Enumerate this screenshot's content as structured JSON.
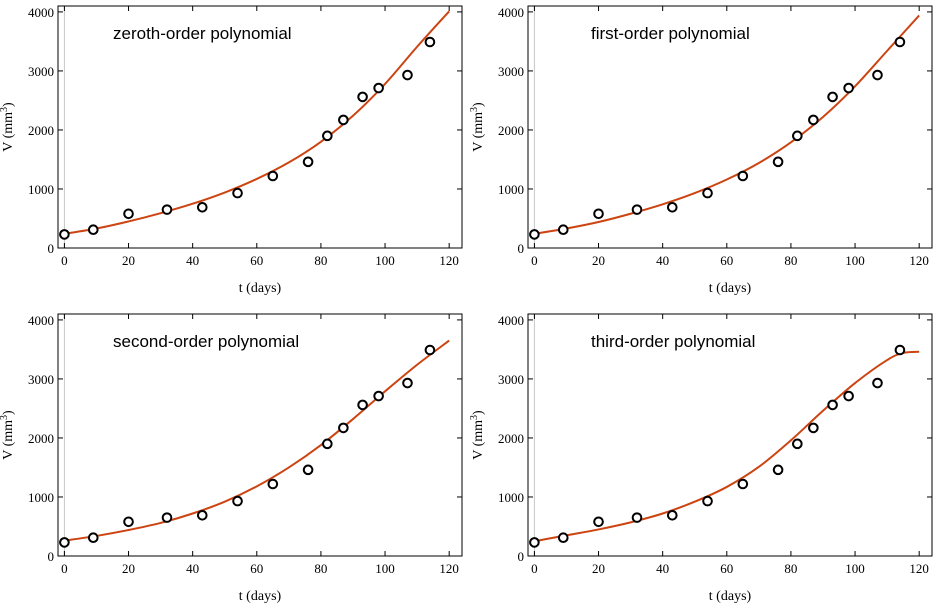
{
  "colors": {
    "fit_line": "#cc4411",
    "points": "#000000",
    "zero_line": "#c8c8c8"
  },
  "chart_data": [
    {
      "type": "scatter",
      "title": "zeroth-order polynomial",
      "xlabel": "t (days)",
      "ylabel": "V (mm³)",
      "ylabel_base": "V (mm",
      "ylabel_sup": "3",
      "ylabel_close": ")",
      "xlim": [
        -2,
        124
      ],
      "ylim": [
        0,
        4100
      ],
      "x_ticks": [
        "0",
        "20",
        "40",
        "60",
        "80",
        "100",
        "120"
      ],
      "y_ticks": [
        "0",
        "1000",
        "2000",
        "3000",
        "4000"
      ],
      "grid": false,
      "series": [
        {
          "kind": "points",
          "x": [
            0,
            9,
            20,
            32,
            43,
            54,
            65,
            76,
            82,
            87,
            93,
            98,
            107,
            114
          ],
          "y": [
            230,
            310,
            580,
            650,
            690,
            930,
            1220,
            1460,
            1900,
            2170,
            2560,
            2710,
            2930,
            3490
          ]
        },
        {
          "kind": "fit",
          "x": [
            0,
            10,
            20,
            30,
            40,
            50,
            60,
            70,
            80,
            90,
            100,
            110,
            120
          ],
          "y": [
            240,
            330,
            450,
            590,
            750,
            940,
            1170,
            1450,
            1800,
            2240,
            2780,
            3410,
            4010
          ]
        }
      ]
    },
    {
      "type": "scatter",
      "title": "first-order polynomial",
      "xlabel": "t (days)",
      "ylabel": "V (mm³)",
      "ylabel_base": "V (mm",
      "ylabel_sup": "3",
      "ylabel_close": ")",
      "xlim": [
        -2,
        124
      ],
      "ylim": [
        0,
        4100
      ],
      "x_ticks": [
        "0",
        "20",
        "40",
        "60",
        "80",
        "100",
        "120"
      ],
      "y_ticks": [
        "0",
        "1000",
        "2000",
        "3000",
        "4000"
      ],
      "grid": false,
      "series": [
        {
          "kind": "points",
          "x": [
            0,
            9,
            20,
            32,
            43,
            54,
            65,
            76,
            82,
            87,
            93,
            98,
            107,
            114
          ],
          "y": [
            230,
            310,
            580,
            650,
            690,
            930,
            1220,
            1460,
            1900,
            2170,
            2560,
            2710,
            2930,
            3490
          ]
        },
        {
          "kind": "fit",
          "x": [
            0,
            10,
            20,
            30,
            40,
            50,
            60,
            70,
            80,
            90,
            100,
            110,
            120
          ],
          "y": [
            240,
            330,
            440,
            580,
            740,
            930,
            1160,
            1440,
            1790,
            2220,
            2740,
            3340,
            3940
          ]
        }
      ]
    },
    {
      "type": "scatter",
      "title": "second-order polynomial",
      "xlabel": "t (days)",
      "ylabel": "V (mm³)",
      "ylabel_base": "V (mm",
      "ylabel_sup": "3",
      "ylabel_close": ")",
      "xlim": [
        -2,
        124
      ],
      "ylim": [
        0,
        4100
      ],
      "x_ticks": [
        "0",
        "20",
        "40",
        "60",
        "80",
        "100",
        "120"
      ],
      "y_ticks": [
        "0",
        "1000",
        "2000",
        "3000",
        "4000"
      ],
      "grid": false,
      "series": [
        {
          "kind": "points",
          "x": [
            0,
            9,
            20,
            32,
            43,
            54,
            65,
            76,
            82,
            87,
            93,
            98,
            107,
            114
          ],
          "y": [
            230,
            310,
            580,
            650,
            690,
            930,
            1220,
            1460,
            1900,
            2170,
            2560,
            2710,
            2930,
            3490
          ]
        },
        {
          "kind": "fit",
          "x": [
            0,
            10,
            20,
            30,
            40,
            50,
            60,
            70,
            80,
            90,
            100,
            110,
            120
          ],
          "y": [
            260,
            340,
            440,
            560,
            720,
            920,
            1180,
            1500,
            1880,
            2320,
            2790,
            3240,
            3650
          ]
        }
      ]
    },
    {
      "type": "scatter",
      "title": "third-order polynomial",
      "xlabel": "t (days)",
      "ylabel": "V (mm³)",
      "ylabel_base": "V (mm",
      "ylabel_sup": "3",
      "ylabel_close": ")",
      "xlim": [
        -2,
        124
      ],
      "ylim": [
        0,
        4100
      ],
      "x_ticks": [
        "0",
        "20",
        "40",
        "60",
        "80",
        "100",
        "120"
      ],
      "y_ticks": [
        "0",
        "1000",
        "2000",
        "3000",
        "4000"
      ],
      "grid": false,
      "series": [
        {
          "kind": "points",
          "x": [
            0,
            9,
            20,
            32,
            43,
            54,
            65,
            76,
            82,
            87,
            93,
            98,
            107,
            114
          ],
          "y": [
            230,
            310,
            580,
            650,
            690,
            930,
            1220,
            1460,
            1900,
            2170,
            2560,
            2710,
            2930,
            3490
          ]
        },
        {
          "kind": "fit",
          "x": [
            0,
            10,
            20,
            30,
            40,
            50,
            60,
            70,
            80,
            90,
            100,
            110,
            115,
            120
          ],
          "y": [
            250,
            350,
            450,
            570,
            720,
            920,
            1170,
            1510,
            1960,
            2460,
            2930,
            3320,
            3440,
            3460
          ]
        }
      ]
    }
  ]
}
